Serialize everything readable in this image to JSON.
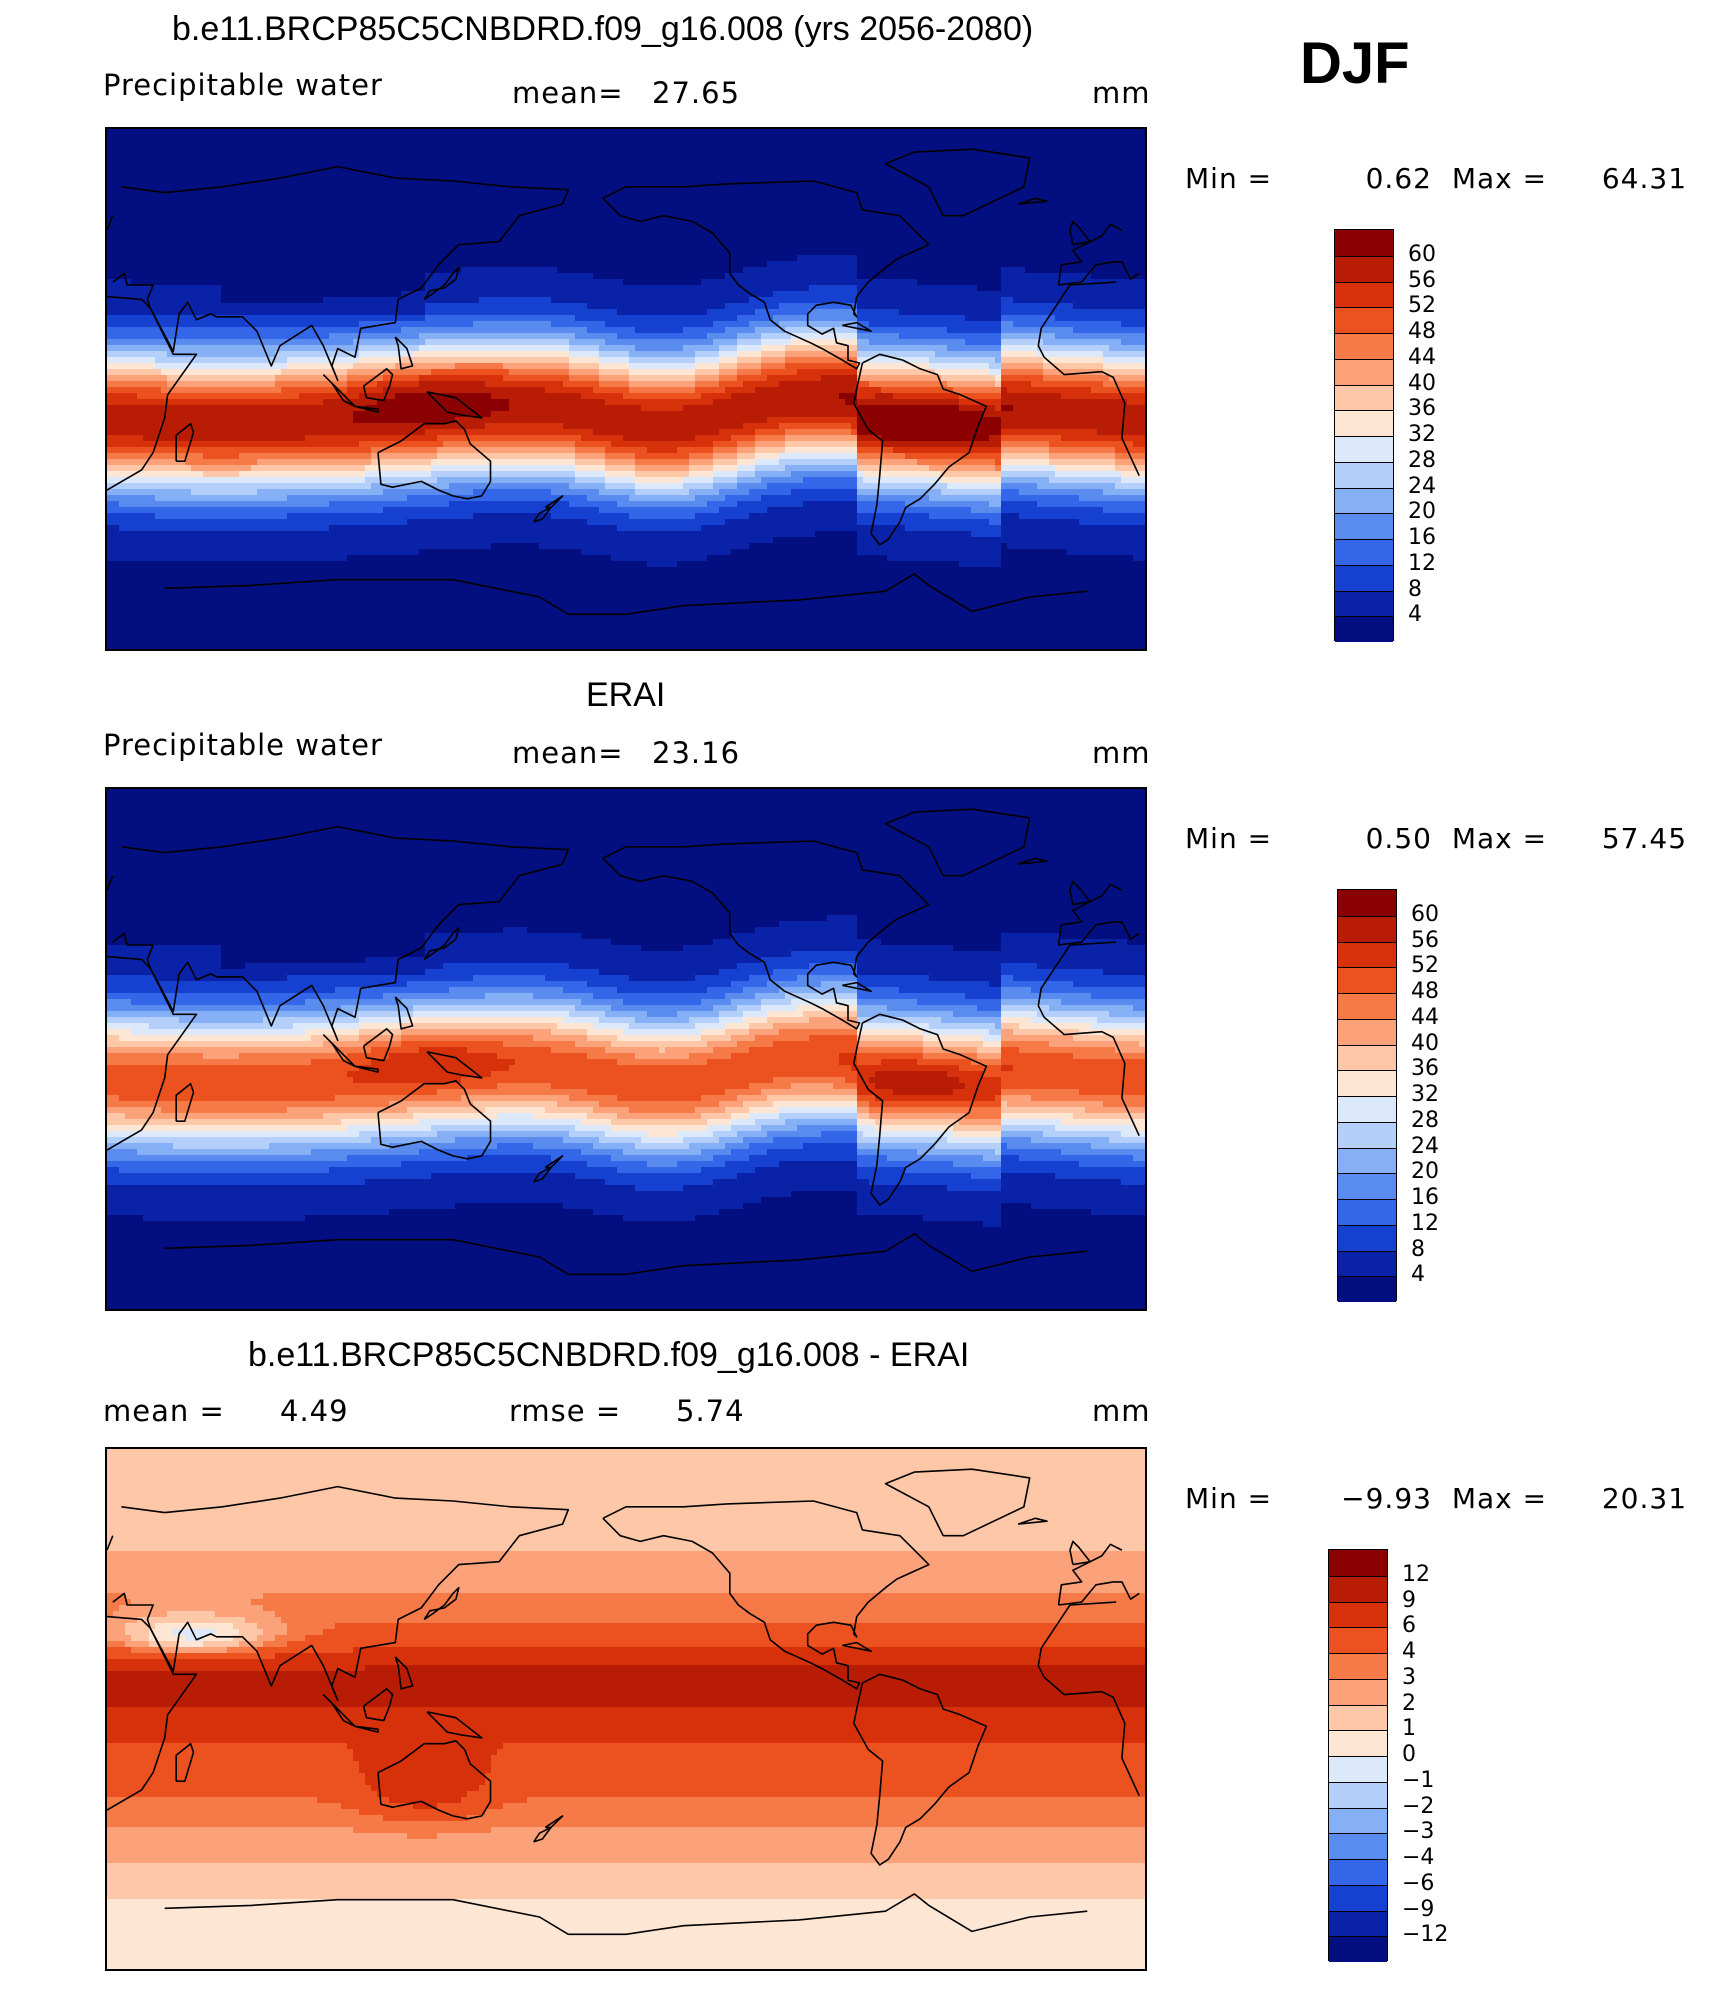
{
  "season": "DJF",
  "panels": [
    {
      "id": "model",
      "title": "b.e11.BRCP85C5CNBDRD.f09_g16.008 (yrs 2056-2080)",
      "left_label": "Precipitable water",
      "center_label": "mean=",
      "center_value": "27.65",
      "right_label": "mm",
      "minmax": {
        "min_label": "Min =",
        "min_value": "0.62",
        "max_label": "Max =",
        "max_value": "64.31"
      },
      "colorbar": {
        "labels": [
          "60",
          "56",
          "52",
          "48",
          "44",
          "40",
          "36",
          "32",
          "28",
          "24",
          "20",
          "16",
          "12",
          "8",
          "4"
        ],
        "colors": [
          "#8b0000",
          "#b81c04",
          "#d7310c",
          "#ec5120",
          "#f57a47",
          "#fba27a",
          "#fdc7a8",
          "#fde6d4",
          "#dce9fb",
          "#b3cffa",
          "#86b0f6",
          "#5a8cf0",
          "#3366e8",
          "#1640d0",
          "#0a22a8",
          "#030f80"
        ]
      },
      "field": "positive"
    },
    {
      "id": "obs",
      "title": "ERAI",
      "left_label": "Precipitable water",
      "center_label": "mean=",
      "center_value": "23.16",
      "right_label": "mm",
      "minmax": {
        "min_label": "Min =",
        "min_value": "0.50",
        "max_label": "Max =",
        "max_value": "57.45"
      },
      "colorbar": {
        "labels": [
          "60",
          "56",
          "52",
          "48",
          "44",
          "40",
          "36",
          "32",
          "28",
          "24",
          "20",
          "16",
          "12",
          "8",
          "4"
        ],
        "colors": [
          "#8b0000",
          "#b81c04",
          "#d7310c",
          "#ec5120",
          "#f57a47",
          "#fba27a",
          "#fdc7a8",
          "#fde6d4",
          "#dce9fb",
          "#b3cffa",
          "#86b0f6",
          "#5a8cf0",
          "#3366e8",
          "#1640d0",
          "#0a22a8",
          "#030f80"
        ]
      },
      "field": "positive"
    },
    {
      "id": "diff",
      "title": "b.e11.BRCP85C5CNBDRD.f09_g16.008 - ERAI",
      "left_label": "mean =",
      "left_value": "4.49",
      "center_label": "rmse =",
      "center_value": "5.74",
      "right_label": "mm",
      "minmax": {
        "min_label": "Min =",
        "min_value": "−9.93",
        "max_label": "Max =",
        "max_value": "20.31"
      },
      "colorbar": {
        "labels": [
          "12",
          "9",
          "6",
          "4",
          "3",
          "2",
          "1",
          "0",
          "−1",
          "−2",
          "−3",
          "−4",
          "−6",
          "−9",
          "−12"
        ],
        "colors": [
          "#8b0000",
          "#b81c04",
          "#d7310c",
          "#ec5120",
          "#f57a47",
          "#fba27a",
          "#fdc7a8",
          "#fde6d4",
          "#dce9fb",
          "#b3cffa",
          "#86b0f6",
          "#5a8cf0",
          "#3366e8",
          "#1640d0",
          "#0a22a8",
          "#030f80"
        ]
      },
      "field": "diff"
    }
  ]
}
